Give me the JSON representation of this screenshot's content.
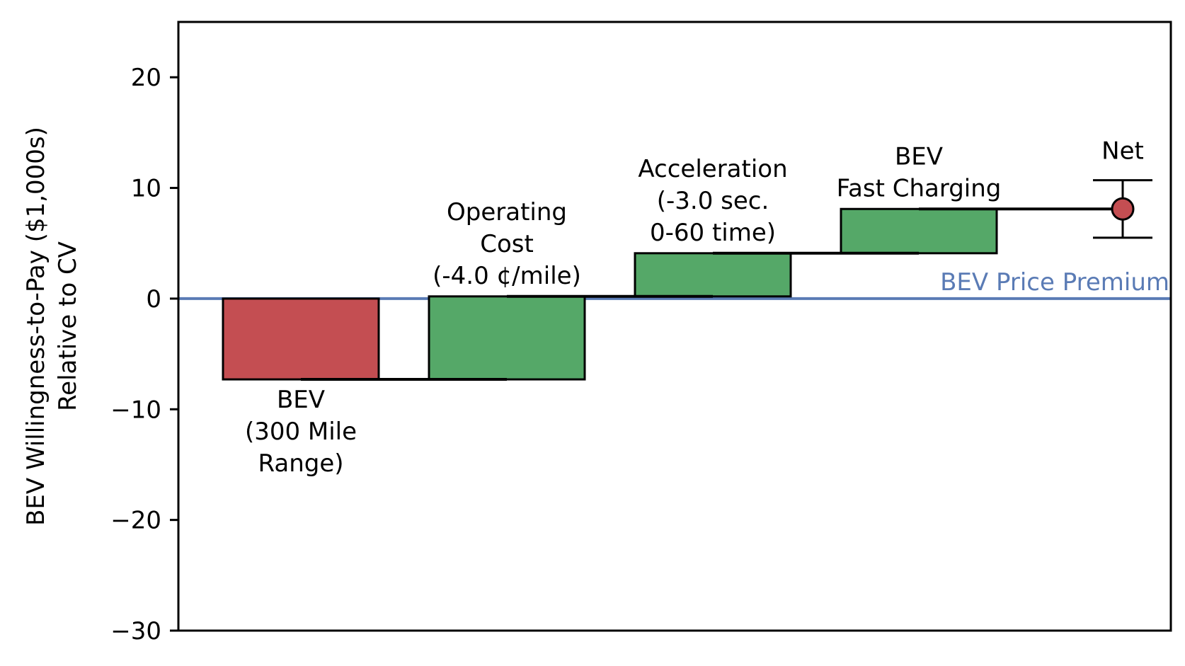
{
  "chart_data": {
    "type": "waterfall",
    "ylabel_lines": [
      "BEV Willingness-to-Pay ($1,000s)",
      "Relative to CV"
    ],
    "ylim": [
      -30,
      25
    ],
    "yticks": [
      20,
      10,
      0,
      -10,
      -20,
      -30
    ],
    "ytick_labels": [
      "20",
      "10",
      "0",
      "−10",
      "−20",
      "−30"
    ],
    "grid": false,
    "steps": [
      {
        "label_lines": [
          "BEV",
          "(300 Mile",
          "Range)"
        ],
        "start": 0.0,
        "end": -7.3,
        "color": "#c44e52",
        "label_side": "below"
      },
      {
        "label_lines": [
          "Operating",
          "Cost",
          "(-4.0 ¢/mile)"
        ],
        "start": -7.3,
        "end": 0.2,
        "color": "#55a868",
        "label_side": "above"
      },
      {
        "label_lines": [
          "Acceleration",
          "(-3.0 sec.",
          "0-60 time)"
        ],
        "start": 0.2,
        "end": 4.1,
        "color": "#55a868",
        "label_side": "above"
      },
      {
        "label_lines": [
          "BEV",
          "Fast Charging"
        ],
        "start": 4.1,
        "end": 8.1,
        "color": "#55a868",
        "label_side": "above"
      }
    ],
    "net": {
      "label": "Net",
      "value": 8.1,
      "lower": 5.5,
      "upper": 10.7,
      "color": "#c44e52"
    },
    "reference_line": {
      "value": 0,
      "label": "BEV Price Premium",
      "color": "#5a7bb5"
    }
  }
}
